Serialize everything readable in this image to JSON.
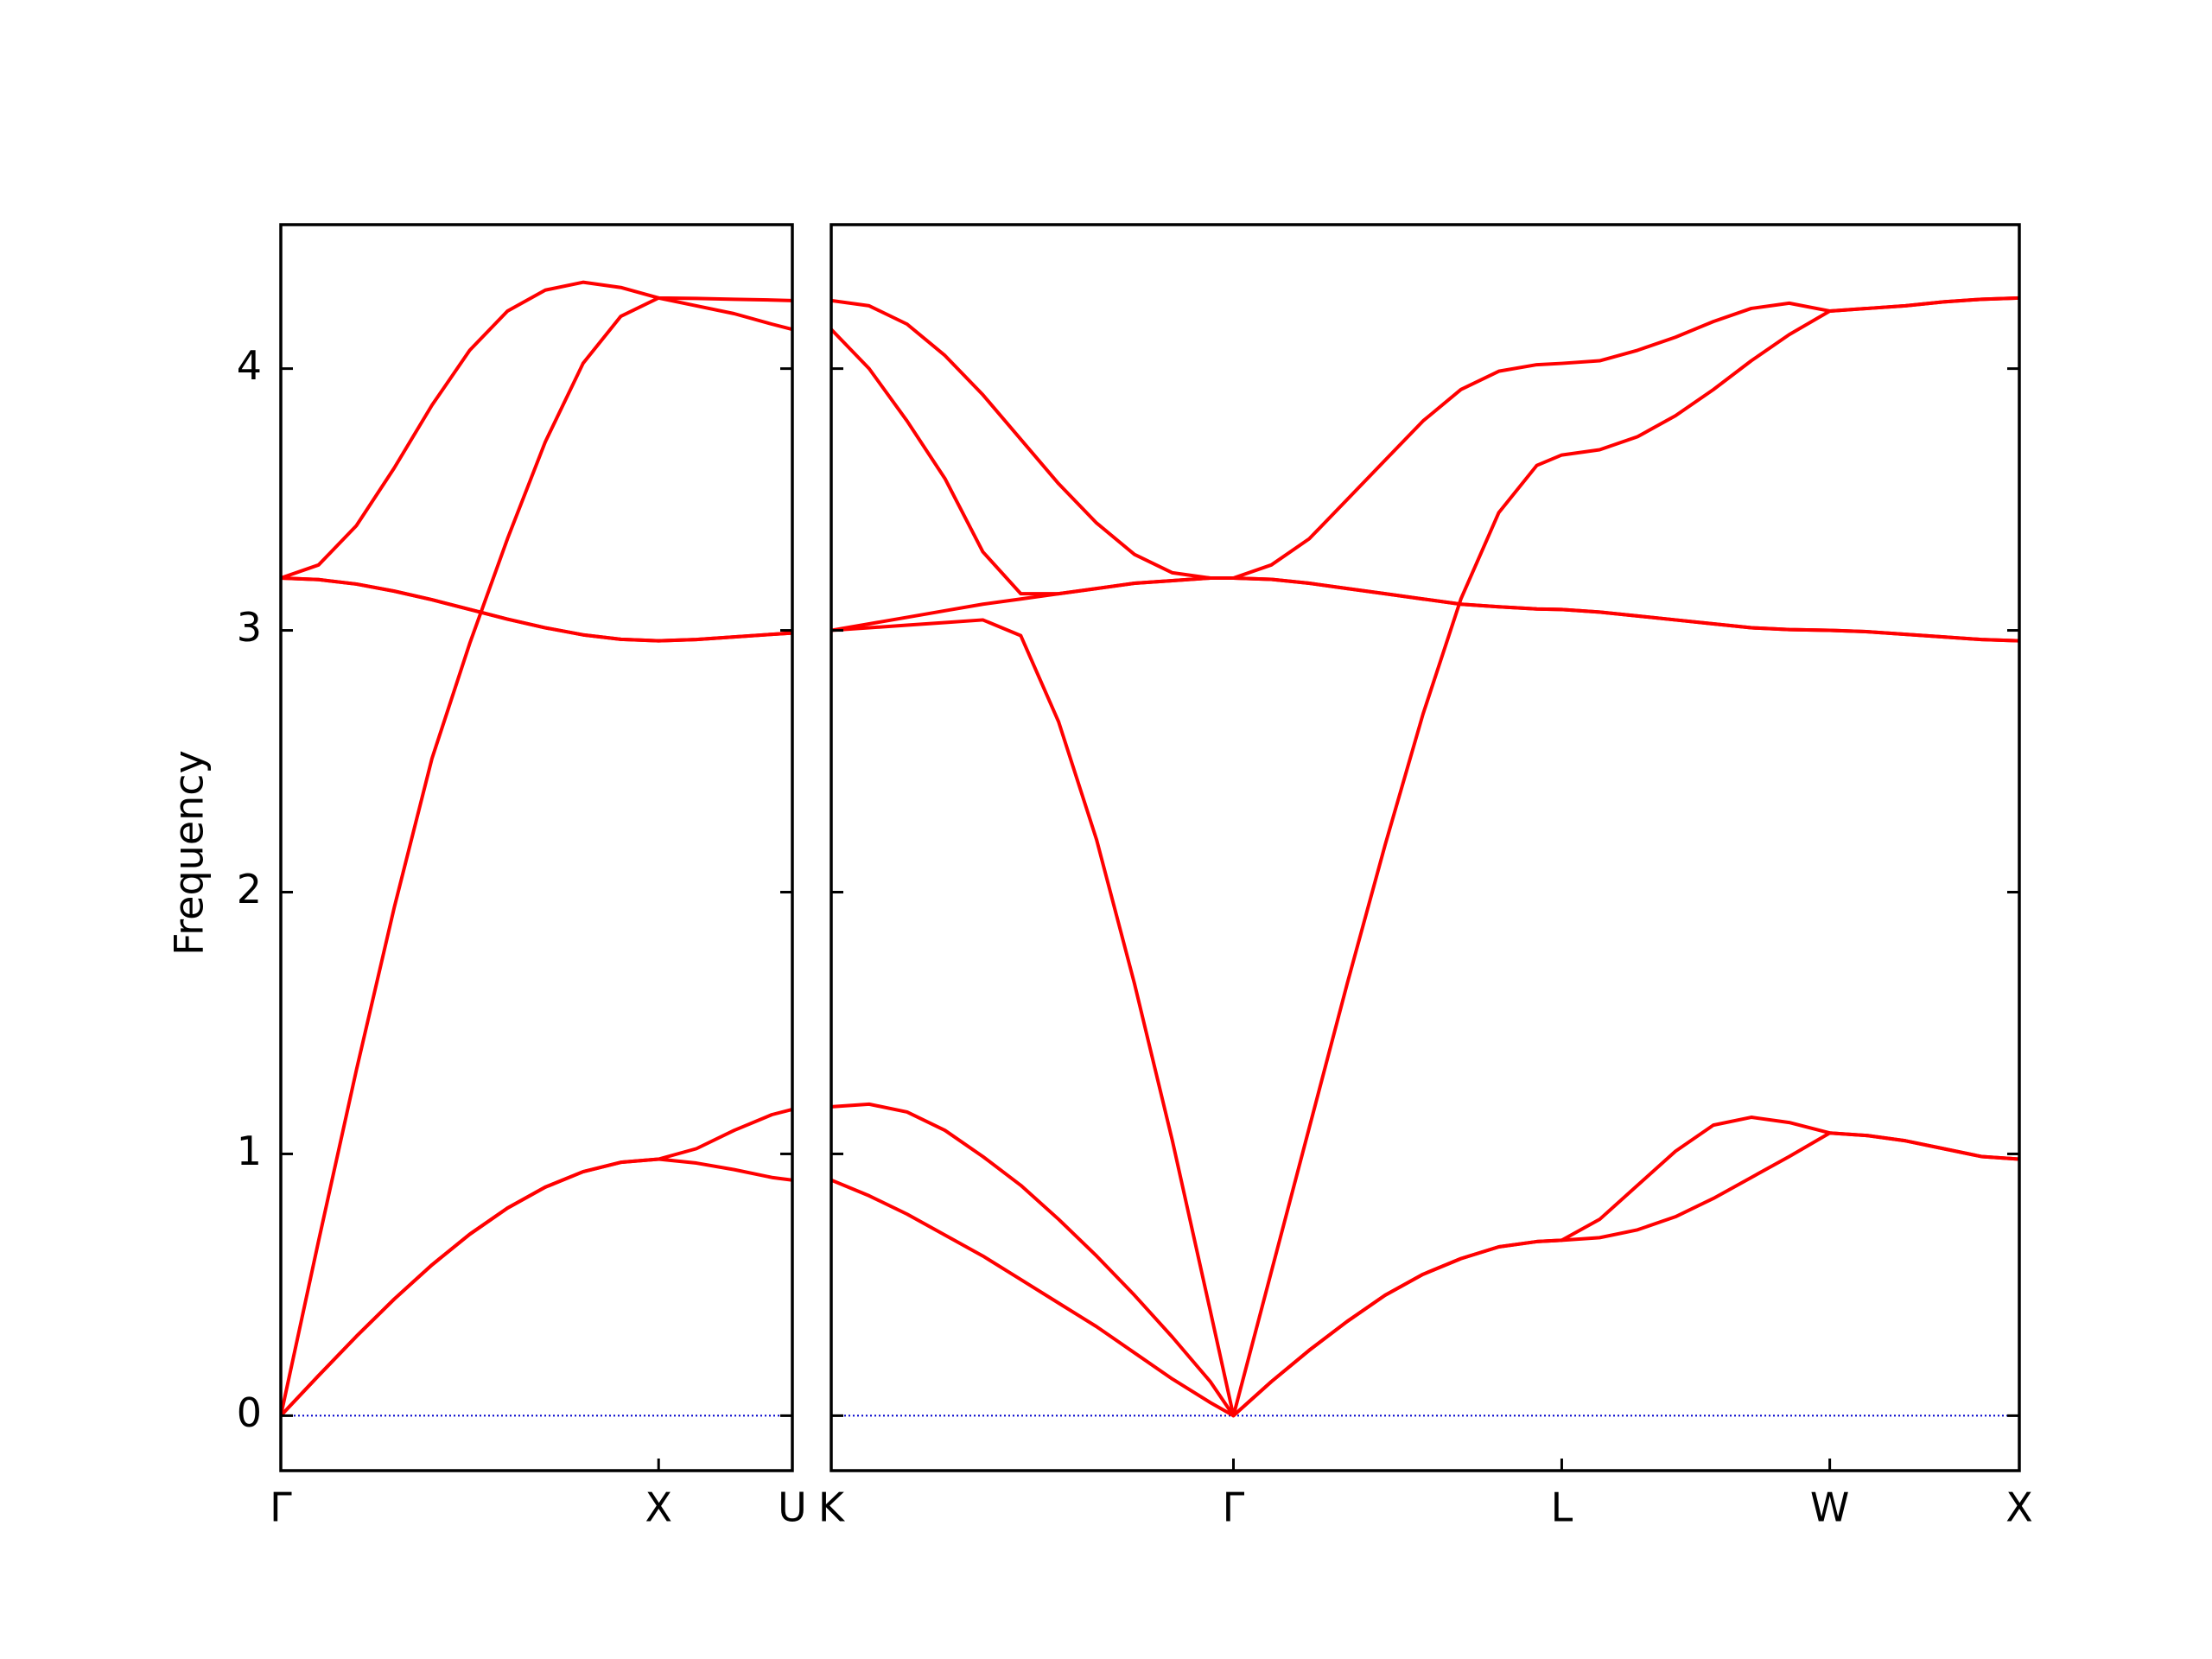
{
  "chart_data": [
    {
      "type": "line",
      "ylabel": "Frequency",
      "x": [
        0,
        0.1,
        0.2,
        0.3,
        0.4,
        0.5,
        0.6,
        0.7,
        0.8,
        0.9,
        1.0,
        1.1,
        1.2,
        1.3,
        1.354
      ],
      "xlim": [
        0,
        1.354
      ],
      "xticks": [
        {
          "value": 0,
          "label": "Γ"
        },
        {
          "value": 1.0,
          "label": "X"
        },
        {
          "value": 1.354,
          "label": "U"
        }
      ],
      "ylim": [
        -0.21,
        4.55
      ],
      "yticks": [
        0,
        1,
        2,
        3,
        4
      ],
      "ytick_labels": true,
      "hline": {
        "y": 0,
        "color": "#0000cc",
        "style": "dotted"
      },
      "series": [
        {
          "color": "#ff0000",
          "values": [
            0,
            0.153,
            0.303,
            0.445,
            0.576,
            0.693,
            0.793,
            0.873,
            0.932,
            0.968,
            0.98,
            1.02,
            1.09,
            1.15,
            1.17
          ]
        },
        {
          "color": "#ff0000",
          "values": [
            0,
            0.153,
            0.303,
            0.445,
            0.576,
            0.693,
            0.793,
            0.873,
            0.932,
            0.968,
            0.98,
            0.965,
            0.94,
            0.91,
            0.9
          ]
        },
        {
          "color": "#ff0000",
          "values": [
            3.2,
            3.194,
            3.177,
            3.15,
            3.117,
            3.08,
            3.043,
            3.01,
            2.983,
            2.966,
            2.96,
            2.965,
            2.975,
            2.985,
            2.99
          ]
        },
        {
          "color": "#ff0000",
          "values": [
            3.2,
            3.194,
            3.177,
            3.15,
            3.117,
            3.08,
            3.043,
            3.01,
            2.983,
            2.966,
            2.96,
            2.965,
            2.975,
            2.985,
            2.99
          ]
        },
        {
          "color": "#ff0000",
          "values": [
            0,
            0.668,
            1.32,
            1.94,
            2.51,
            2.95,
            3.35,
            3.72,
            4.02,
            4.2,
            4.27,
            4.24,
            4.21,
            4.17,
            4.15
          ]
        },
        {
          "color": "#ff0000",
          "values": [
            3.2,
            3.25,
            3.4,
            3.62,
            3.86,
            4.07,
            4.22,
            4.3,
            4.33,
            4.31,
            4.27,
            4.268,
            4.265,
            4.262,
            4.26
          ]
        }
      ]
    },
    {
      "type": "line",
      "x": [
        0,
        0.1,
        0.2,
        0.3,
        0.4,
        0.5,
        0.6,
        0.7,
        0.8,
        0.9,
        1.0,
        1.061,
        1.161,
        1.261,
        1.361,
        1.461,
        1.561,
        1.661,
        1.761,
        1.861,
        1.927,
        2.027,
        2.127,
        2.227,
        2.327,
        2.427,
        2.527,
        2.634,
        2.734,
        2.834,
        2.934,
        3.034,
        3.134
      ],
      "xlim": [
        0,
        3.134
      ],
      "xticks": [
        {
          "value": 0,
          "label": "K"
        },
        {
          "value": 1.061,
          "label": "Γ"
        },
        {
          "value": 1.927,
          "label": "L"
        },
        {
          "value": 2.634,
          "label": "W"
        },
        {
          "value": 3.134,
          "label": "X"
        }
      ],
      "ylim": [
        -0.21,
        4.55
      ],
      "yticks": [
        0,
        1,
        2,
        3,
        4
      ],
      "ytick_labels": false,
      "hline": {
        "y": 0,
        "color": "#0000cc",
        "style": "dotted"
      },
      "series": [
        {
          "color": "#ff0000",
          "values": [
            0.9,
            0.84,
            0.77,
            0.69,
            0.61,
            0.52,
            0.43,
            0.34,
            0.24,
            0.14,
            0.05,
            0,
            0.13,
            0.25,
            0.36,
            0.46,
            0.54,
            0.6,
            0.645,
            0.665,
            0.67,
            0.68,
            0.71,
            0.76,
            0.83,
            0.91,
            0.99,
            1.08,
            1.07,
            1.05,
            1.02,
            0.99,
            0.98
          ]
        },
        {
          "color": "#ff0000",
          "values": [
            1.18,
            1.19,
            1.16,
            1.09,
            0.99,
            0.88,
            0.75,
            0.61,
            0.46,
            0.3,
            0.13,
            0,
            0.13,
            0.25,
            0.36,
            0.46,
            0.54,
            0.6,
            0.645,
            0.665,
            0.67,
            0.75,
            0.88,
            1.01,
            1.11,
            1.14,
            1.12,
            1.08,
            1.07,
            1.05,
            1.02,
            0.99,
            0.98
          ]
        },
        {
          "color": "#ff0000",
          "values": [
            3.0,
            3.01,
            3.02,
            3.03,
            3.04,
            2.98,
            2.65,
            2.2,
            1.65,
            1.05,
            0.4,
            0,
            0.55,
            1.1,
            1.65,
            2.18,
            2.68,
            3.12,
            3.45,
            3.63,
            3.67,
            3.69,
            3.74,
            3.82,
            3.92,
            4.03,
            4.13,
            4.22,
            4.23,
            4.24,
            4.255,
            4.265,
            4.27
          ]
        },
        {
          "color": "#ff0000",
          "values": [
            3.0,
            3.025,
            3.05,
            3.075,
            3.1,
            3.12,
            3.14,
            3.16,
            3.18,
            3.19,
            3.2,
            3.2,
            3.195,
            3.18,
            3.16,
            3.14,
            3.12,
            3.1,
            3.09,
            3.082,
            3.08,
            3.07,
            3.055,
            3.04,
            3.025,
            3.01,
            3.003,
            3.0,
            2.995,
            2.985,
            2.975,
            2.965,
            2.96
          ]
        },
        {
          "color": "#ff0000",
          "values": [
            4.15,
            4.0,
            3.8,
            3.58,
            3.3,
            3.14,
            3.14,
            3.16,
            3.18,
            3.19,
            3.2,
            3.2,
            3.195,
            3.18,
            3.16,
            3.14,
            3.12,
            3.1,
            3.09,
            3.082,
            3.08,
            3.07,
            3.055,
            3.04,
            3.025,
            3.01,
            3.003,
            3.0,
            2.995,
            2.985,
            2.975,
            2.965,
            2.96
          ]
        },
        {
          "color": "#ff0000",
          "values": [
            4.26,
            4.24,
            4.17,
            4.05,
            3.9,
            3.73,
            3.56,
            3.41,
            3.29,
            3.22,
            3.2,
            3.2,
            3.25,
            3.35,
            3.5,
            3.65,
            3.8,
            3.92,
            3.99,
            4.015,
            4.02,
            4.03,
            4.07,
            4.12,
            4.18,
            4.23,
            4.25,
            4.22,
            4.23,
            4.24,
            4.255,
            4.265,
            4.27
          ]
        }
      ]
    }
  ]
}
